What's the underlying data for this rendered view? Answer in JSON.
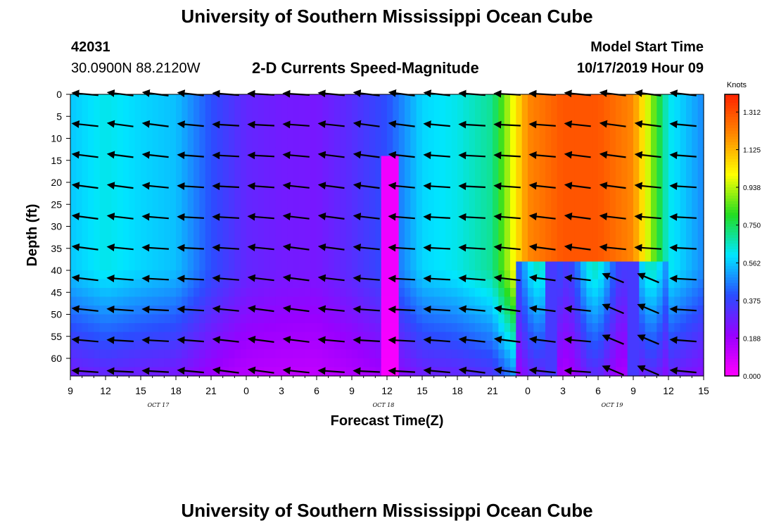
{
  "page": {
    "title_top": "University of Southern Mississippi Ocean Cube",
    "title_bottom": "University of Southern Mississippi Ocean Cube",
    "station_id": "42031",
    "station_coords": "30.0900N 88.2120W",
    "subtitle": "2-D Currents Speed-Magnitude",
    "model_start_label": "Model Start Time",
    "model_start_value": "10/17/2019 Hour 09"
  },
  "chart_data": {
    "type": "heatmap",
    "title": "2-D Currents Speed-Magnitude",
    "xlabel": "Forecast Time(Z)",
    "ylabel": "Depth (ft)",
    "x_tick_labels": [
      "9",
      "12",
      "15",
      "18",
      "21",
      "0",
      "3",
      "6",
      "9",
      "12",
      "15",
      "18",
      "21",
      "0",
      "3",
      "6",
      "9",
      "12",
      "15"
    ],
    "x_tick_hours": [
      0,
      3,
      6,
      9,
      12,
      15,
      18,
      21,
      24,
      27,
      30,
      33,
      36,
      39,
      42,
      45,
      48,
      51,
      54
    ],
    "x_range_hours": [
      0,
      54
    ],
    "date_labels": [
      {
        "label": "OCT 17",
        "hour": 7.5
      },
      {
        "label": "OCT 18",
        "hour": 26.7
      },
      {
        "label": "OCT 19",
        "hour": 46.2
      }
    ],
    "y_ticks": [
      0,
      5,
      10,
      15,
      20,
      25,
      30,
      35,
      40,
      45,
      50,
      55,
      60
    ],
    "y_range": [
      0,
      64
    ],
    "y_inverted": true,
    "colorbar": {
      "unit": "Knots",
      "tick_labels": [
        "0.000",
        "0.188",
        "0.375",
        "0.562",
        "0.750",
        "0.938",
        "1.125",
        "1.312"
      ],
      "range": [
        0,
        1.4
      ],
      "colors": [
        "#ff00ff",
        "#9900ff",
        "#2a4dff",
        "#00e6ff",
        "#22dd22",
        "#ffff00",
        "#ff8800",
        "#ff2200"
      ]
    },
    "speed_profile_surface": [
      {
        "hour": 0,
        "value": 0.56
      },
      {
        "hour": 3,
        "value": 0.62
      },
      {
        "hour": 6,
        "value": 0.58
      },
      {
        "hour": 9,
        "value": 0.55
      },
      {
        "hour": 12,
        "value": 0.4
      },
      {
        "hour": 15,
        "value": 0.3
      },
      {
        "hour": 18,
        "value": 0.27
      },
      {
        "hour": 21,
        "value": 0.26
      },
      {
        "hour": 24,
        "value": 0.32
      },
      {
        "hour": 27,
        "value": 0.4
      },
      {
        "hour": 30,
        "value": 0.58
      },
      {
        "hour": 33,
        "value": 0.62
      },
      {
        "hour": 36,
        "value": 0.7
      },
      {
        "hour": 39,
        "value": 1.2
      },
      {
        "hour": 42,
        "value": 1.3
      },
      {
        "hour": 45,
        "value": 1.3
      },
      {
        "hour": 48,
        "value": 1.2
      },
      {
        "hour": 51,
        "value": 0.62
      },
      {
        "hour": 54,
        "value": 0.48
      }
    ],
    "vector_times_hours": [
      1.5,
      4.5,
      7.5,
      10.5,
      13.5,
      16.5,
      19.5,
      22.5,
      25.5,
      28.5,
      31.5,
      34.5,
      37.5,
      40.5,
      43.5,
      46.5,
      49.5,
      52.5
    ],
    "vector_depths_ft": [
      0,
      7,
      14,
      21,
      28,
      35,
      42,
      49,
      56,
      63
    ]
  }
}
